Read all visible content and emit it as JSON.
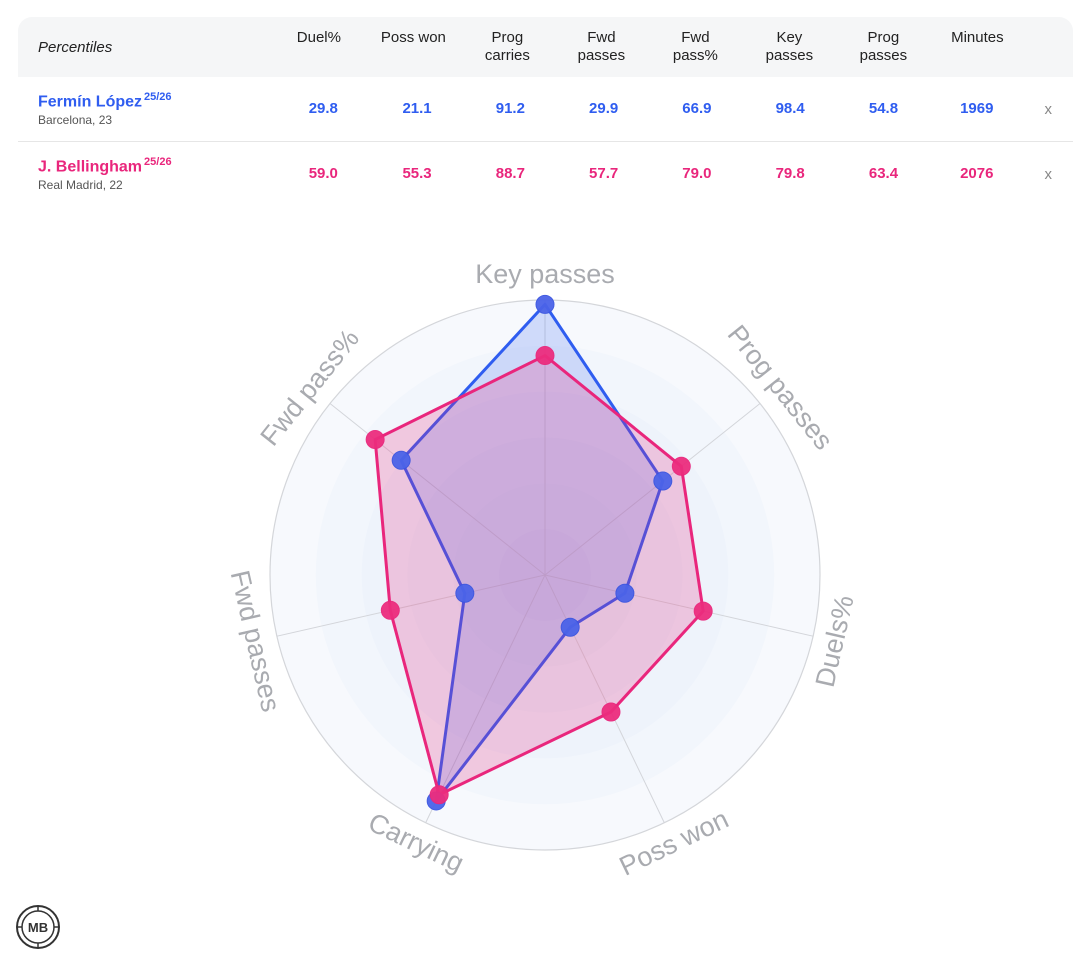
{
  "table": {
    "title": "Percentiles",
    "columns": [
      [
        "Duel%"
      ],
      [
        "Poss won"
      ],
      [
        "Prog",
        "carries"
      ],
      [
        "Fwd",
        "passes"
      ],
      [
        "Fwd",
        "pass%"
      ],
      [
        "Key",
        "passes"
      ],
      [
        "Prog",
        "passes"
      ],
      [
        "Minutes"
      ]
    ],
    "rows": [
      {
        "name": "Fermín López",
        "season": "25/26",
        "meta": "Barcelona, 23",
        "values": [
          "29.8",
          "21.1",
          "91.2",
          "29.9",
          "66.9",
          "98.4",
          "54.8",
          "1969"
        ],
        "remove": "x"
      },
      {
        "name": "J. Bellingham",
        "season": "25/26",
        "meta": "Real Madrid, 22",
        "values": [
          "59.0",
          "55.3",
          "88.7",
          "57.7",
          "79.0",
          "79.8",
          "63.4",
          "2076"
        ],
        "remove": "x"
      }
    ]
  },
  "colors": {
    "blue": "#2f5df0",
    "pink": "#e9267c"
  },
  "chart_data": {
    "type": "radar",
    "axes": [
      "Key passes",
      "Prog passes",
      "Duels%",
      "Poss won",
      "Carrying",
      "Fwd passes",
      "Fwd pass%"
    ],
    "range": [
      0,
      100
    ],
    "series": [
      {
        "name": "Fermín López",
        "color": "#2f5df0",
        "values": [
          98.4,
          54.8,
          29.8,
          21.1,
          91.2,
          29.9,
          66.9
        ]
      },
      {
        "name": "J. Bellingham",
        "color": "#e9267c",
        "values": [
          79.8,
          63.4,
          59.0,
          55.3,
          88.7,
          57.7,
          79.0
        ]
      }
    ]
  },
  "logo": {
    "text": "MB",
    "icon": "mb-logo-icon"
  }
}
